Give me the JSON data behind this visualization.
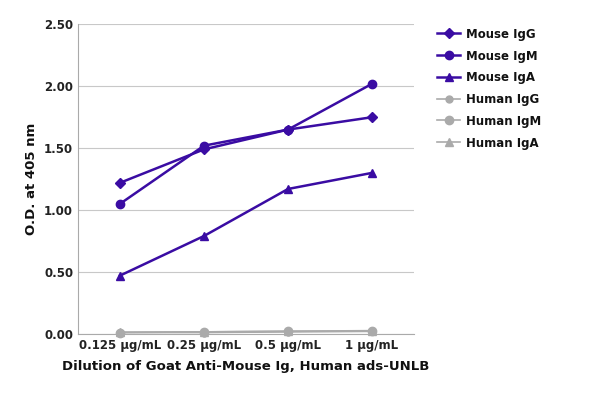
{
  "x_labels": [
    "0.125 μg/mL",
    "0.25 μg/mL",
    "0.5 μg/mL",
    "1 μg/mL"
  ],
  "x_values": [
    1,
    2,
    3,
    4
  ],
  "series": [
    {
      "label": "Mouse IgG",
      "values": [
        1.22,
        1.49,
        1.65,
        1.75
      ],
      "color": "#3a0ca3",
      "marker": "D",
      "markersize": 5,
      "linewidth": 1.8
    },
    {
      "label": "Mouse IgM",
      "values": [
        1.05,
        1.52,
        1.65,
        2.02
      ],
      "color": "#3a0ca3",
      "marker": "o",
      "markersize": 6,
      "linewidth": 1.8
    },
    {
      "label": "Mouse IgA",
      "values": [
        0.47,
        0.79,
        1.17,
        1.3
      ],
      "color": "#3a0ca3",
      "marker": "^",
      "markersize": 6,
      "linewidth": 1.8
    },
    {
      "label": "Human IgG",
      "values": [
        0.01,
        0.01,
        0.015,
        0.02
      ],
      "color": "#aaaaaa",
      "marker": "o",
      "markersize": 5,
      "linewidth": 1.2
    },
    {
      "label": "Human IgM",
      "values": [
        0.01,
        0.015,
        0.02,
        0.02
      ],
      "color": "#aaaaaa",
      "marker": "o",
      "markersize": 6,
      "linewidth": 1.2
    },
    {
      "label": "Human IgA",
      "values": [
        0.012,
        0.015,
        0.02,
        0.025
      ],
      "color": "#aaaaaa",
      "marker": "^",
      "markersize": 6,
      "linewidth": 1.2
    }
  ],
  "ylabel": "O.D. at 405 nm",
  "xlabel": "Dilution of Goat Anti-Mouse Ig, Human ads-UNLB",
  "ylim": [
    0.0,
    2.5
  ],
  "yticks": [
    0.0,
    0.5,
    1.0,
    1.5,
    2.0,
    2.5
  ],
  "background_color": "#ffffff",
  "grid_color": "#c8c8c8",
  "figure_width": 6.0,
  "figure_height": 4.07,
  "dpi": 100
}
